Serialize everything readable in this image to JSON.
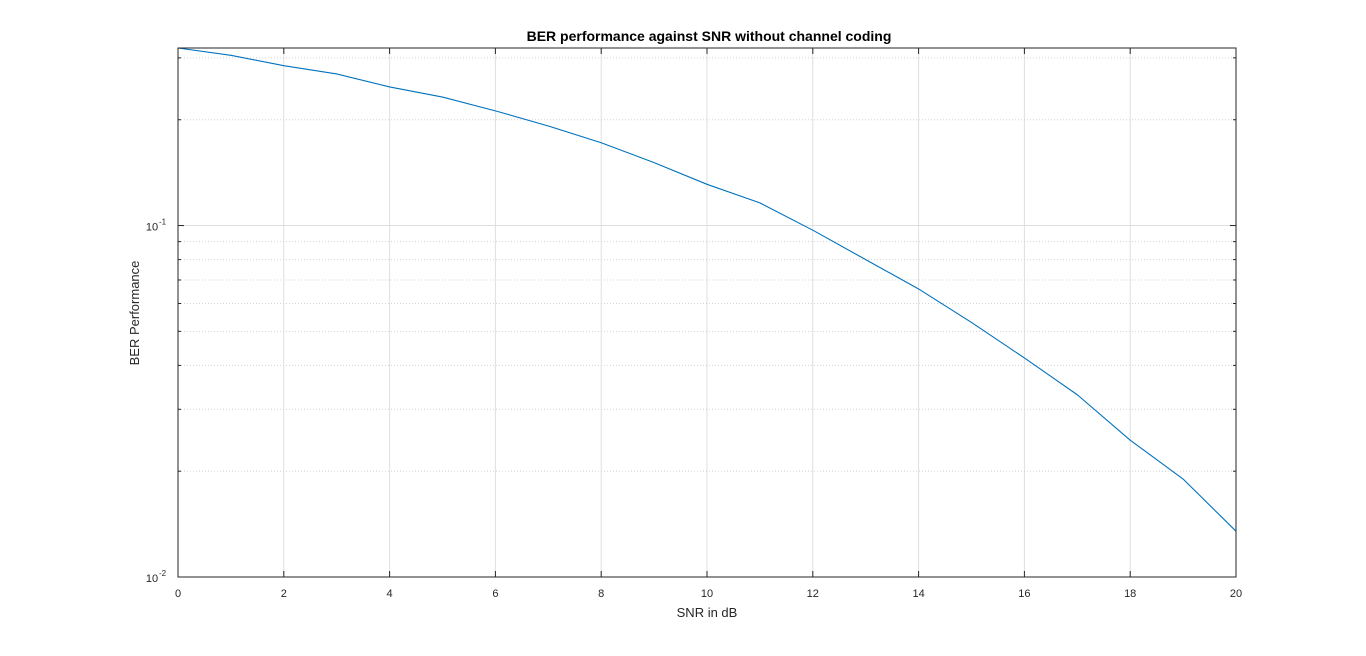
{
  "chart_data": {
    "type": "line",
    "title": "BER performance against SNR without channel coding",
    "xlabel": "SNR in dB",
    "ylabel": "BER Performance",
    "xlim": [
      0,
      20
    ],
    "ylim": [
      0.01,
      0.32
    ],
    "yscale": "log",
    "grid": true,
    "x_ticks": [
      0,
      2,
      4,
      6,
      8,
      10,
      12,
      14,
      16,
      18,
      20
    ],
    "x_tick_labels": [
      "0",
      "2",
      "4",
      "6",
      "8",
      "10",
      "12",
      "14",
      "16",
      "18",
      "20"
    ],
    "y_ticks": [
      {
        "value": 0.1,
        "base": "10",
        "exponent": "-1"
      },
      {
        "value": 0.01,
        "base": "10",
        "exponent": "-2"
      }
    ],
    "series": [
      {
        "color": "#0072BD",
        "x": [
          0,
          1,
          2,
          3,
          4,
          5,
          6,
          7,
          8,
          9,
          10,
          11,
          12,
          13,
          14,
          15,
          16,
          17,
          18,
          19,
          20
        ],
        "y": [
          0.32,
          0.305,
          0.285,
          0.27,
          0.248,
          0.232,
          0.212,
          0.192,
          0.172,
          0.151,
          0.131,
          0.116,
          0.097,
          0.08,
          0.066,
          0.053,
          0.042,
          0.033,
          0.0245,
          0.019,
          0.0135
        ]
      }
    ]
  }
}
